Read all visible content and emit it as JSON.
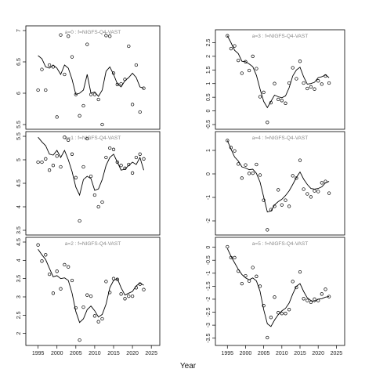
{
  "figure": {
    "xlabel": "Year"
  },
  "chart_data": [
    {
      "type": "line",
      "panel_label": "a=0  :  f=NIGFS-Q4-VAST",
      "xlim": [
        1993,
        2026
      ],
      "ylim": [
        5.5,
        7.0
      ],
      "yticks": [
        5.5,
        6.0,
        6.5,
        7.0
      ],
      "xticks": [
        1995,
        2000,
        2005,
        2010,
        2015,
        2020,
        2025
      ],
      "points": {
        "x": [
          1995,
          1996,
          1997,
          1998,
          1999,
          2000,
          2001,
          2002,
          2003,
          2004,
          2005,
          2006,
          2007,
          2008,
          2009,
          2010,
          2011,
          2012,
          2013,
          2014,
          2015,
          2016,
          2017,
          2018,
          2019,
          2020,
          2021,
          2022,
          2023
        ],
        "y": [
          6.05,
          6.38,
          6.05,
          6.45,
          6.42,
          5.62,
          6.93,
          6.3,
          6.91,
          6.58,
          5.98,
          5.64,
          5.8,
          6.78,
          5.98,
          5.98,
          5.9,
          5.5,
          6.92,
          6.91,
          6.32,
          6.14,
          6.15,
          6.22,
          6.75,
          5.82,
          6.45,
          5.7,
          6.08
        ]
      },
      "fit": {
        "x": [
          1995,
          1996,
          1997,
          1998,
          1999,
          2000,
          2001,
          2002,
          2003,
          2004,
          2005,
          2006,
          2007,
          2008,
          2009,
          2010,
          2011,
          2012,
          2013,
          2014,
          2015,
          2016,
          2017,
          2018,
          2019,
          2020,
          2021,
          2022,
          2023
        ],
        "y": [
          6.6,
          6.55,
          6.42,
          6.4,
          6.45,
          6.4,
          6.3,
          6.45,
          6.4,
          6.22,
          5.98,
          6.0,
          6.05,
          6.3,
          6.0,
          6.02,
          5.95,
          6.05,
          6.35,
          6.42,
          6.3,
          6.15,
          6.1,
          6.2,
          6.25,
          6.32,
          6.25,
          6.1,
          6.08
        ]
      }
    },
    {
      "type": "line",
      "panel_label": "a=1  :  f=NIGFS-Q4-VAST",
      "xlim": [
        1993,
        2026
      ],
      "ylim": [
        3.5,
        5.5
      ],
      "yticks": [
        3.5,
        4.0,
        4.5,
        5.0,
        5.5
      ],
      "xticks": [
        1995,
        2000,
        2005,
        2010,
        2015,
        2020,
        2025
      ],
      "points": {
        "x": [
          1995,
          1996,
          1997,
          1998,
          1999,
          2000,
          2001,
          2002,
          2003,
          2004,
          2005,
          2006,
          2007,
          2008,
          2009,
          2010,
          2011,
          2012,
          2013,
          2014,
          2015,
          2016,
          2017,
          2018,
          2019,
          2020,
          2021,
          2022,
          2023
        ],
        "y": [
          4.95,
          4.95,
          5.02,
          4.78,
          4.88,
          5.08,
          4.85,
          5.48,
          5.42,
          5.12,
          4.62,
          3.7,
          4.85,
          5.45,
          4.65,
          4.25,
          4.0,
          4.1,
          5.05,
          5.25,
          5.22,
          4.95,
          4.88,
          4.82,
          4.9,
          4.72,
          5.05,
          5.12,
          5.02
        ]
      },
      "fit": {
        "x": [
          1995,
          1996,
          1997,
          1998,
          1999,
          2000,
          2001,
          2002,
          2003,
          2004,
          2005,
          2006,
          2007,
          2008,
          2009,
          2010,
          2011,
          2012,
          2013,
          2014,
          2015,
          2016,
          2017,
          2018,
          2019,
          2020,
          2021,
          2022,
          2023
        ],
        "y": [
          5.48,
          5.38,
          5.3,
          5.12,
          5.1,
          5.2,
          5.05,
          5.2,
          5.0,
          4.75,
          4.42,
          4.25,
          4.58,
          4.65,
          4.6,
          4.35,
          4.38,
          4.58,
          4.88,
          5.05,
          5.12,
          4.95,
          4.78,
          4.8,
          4.88,
          4.95,
          4.9,
          5.05,
          4.78
        ]
      }
    },
    {
      "type": "line",
      "panel_label": "a=2  :  f=NIGFS-Q4-VAST",
      "xlim": [
        1993,
        2026
      ],
      "ylim": [
        1.8,
        4.5
      ],
      "yticks": [
        2.0,
        2.5,
        3.0,
        3.5,
        4.0,
        4.5
      ],
      "xticks": [
        1995,
        2000,
        2005,
        2010,
        2015,
        2020,
        2025
      ],
      "points": {
        "x": [
          1995,
          1996,
          1997,
          1998,
          1999,
          2000,
          2001,
          2002,
          2003,
          2004,
          2005,
          2006,
          2007,
          2008,
          2009,
          2010,
          2011,
          2012,
          2013,
          2014,
          2015,
          2016,
          2017,
          2018,
          2019,
          2020,
          2021,
          2022,
          2023
        ],
        "y": [
          4.42,
          3.98,
          4.15,
          3.62,
          3.1,
          3.7,
          3.22,
          3.88,
          3.82,
          3.45,
          2.7,
          1.82,
          2.72,
          3.05,
          3.02,
          2.48,
          2.32,
          2.4,
          3.42,
          3.12,
          3.5,
          3.48,
          3.08,
          2.95,
          3.02,
          3.02,
          3.25,
          3.35,
          3.2
        ]
      },
      "fit": {
        "x": [
          1995,
          1996,
          1997,
          1998,
          1999,
          2000,
          2001,
          2002,
          2003,
          2004,
          2005,
          2006,
          2007,
          2008,
          2009,
          2010,
          2011,
          2012,
          2013,
          2014,
          2015,
          2016,
          2017,
          2018,
          2019,
          2020,
          2021,
          2022,
          2023
        ],
        "y": [
          4.3,
          4.15,
          4.02,
          3.78,
          3.55,
          3.58,
          3.5,
          3.52,
          3.45,
          3.1,
          2.6,
          2.3,
          2.4,
          2.65,
          2.75,
          2.62,
          2.45,
          2.52,
          2.8,
          3.25,
          3.45,
          3.5,
          3.25,
          3.05,
          3.1,
          3.15,
          3.3,
          3.38,
          3.32
        ]
      }
    },
    {
      "type": "line",
      "panel_label": "a=3  :  f=NIGFS-Q4-VAST",
      "xlim": [
        1993,
        2026
      ],
      "ylim": [
        -0.5,
        2.8
      ],
      "yticks": [
        -0.5,
        0.0,
        0.5,
        1.0,
        1.5,
        2.0,
        2.5
      ],
      "xticks": [
        1995,
        2000,
        2005,
        2010,
        2015,
        2020,
        2025
      ],
      "points": {
        "x": [
          1995,
          1996,
          1997,
          1998,
          1999,
          2000,
          2001,
          2002,
          2003,
          2004,
          2005,
          2006,
          2007,
          2008,
          2009,
          2010,
          2011,
          2012,
          2013,
          2014,
          2015,
          2016,
          2017,
          2018,
          2019,
          2020,
          2021,
          2022,
          2023
        ],
        "y": [
          2.75,
          2.28,
          2.38,
          1.85,
          1.38,
          1.8,
          1.48,
          2.0,
          1.55,
          0.52,
          0.68,
          -0.42,
          0.3,
          1.0,
          0.42,
          0.38,
          0.28,
          1.02,
          1.58,
          1.18,
          1.82,
          1.02,
          0.82,
          0.88,
          0.8,
          1.1,
          0.98,
          1.28,
          1.02
        ]
      },
      "fit": {
        "x": [
          1995,
          1996,
          1997,
          1998,
          1999,
          2000,
          2001,
          2002,
          2003,
          2004,
          2005,
          2006,
          2007,
          2008,
          2009,
          2010,
          2011,
          2012,
          2013,
          2014,
          2015,
          2016,
          2017,
          2018,
          2019,
          2020,
          2021,
          2022,
          2023
        ],
        "y": [
          2.75,
          2.5,
          2.22,
          2.1,
          1.82,
          1.8,
          1.72,
          1.62,
          1.3,
          0.8,
          0.35,
          0.12,
          0.35,
          0.58,
          0.52,
          0.48,
          0.55,
          0.85,
          1.28,
          1.5,
          1.6,
          1.25,
          0.98,
          1.0,
          1.05,
          1.22,
          1.25,
          1.32,
          1.22
        ]
      }
    },
    {
      "type": "line",
      "panel_label": "a=4  :  f=NIGFS-Q4-VAST",
      "xlim": [
        1993,
        2026
      ],
      "ylim": [
        -2.4,
        1.6
      ],
      "yticks": [
        -2,
        -1,
        0,
        1
      ],
      "xticks": [
        1995,
        2000,
        2005,
        2010,
        2015,
        2020,
        2025
      ],
      "points": {
        "x": [
          1995,
          1996,
          1997,
          1998,
          1999,
          2000,
          2001,
          2002,
          2003,
          2004,
          2005,
          2006,
          2007,
          2008,
          2009,
          2010,
          2011,
          2012,
          2013,
          2014,
          2015,
          2016,
          2017,
          2018,
          2019,
          2020,
          2021,
          2022,
          2023
        ],
        "y": [
          1.42,
          1.12,
          0.98,
          0.42,
          -0.18,
          0.38,
          0.02,
          0.03,
          0.4,
          -0.05,
          -1.12,
          -2.38,
          -1.52,
          -1.38,
          -0.68,
          -1.32,
          -1.12,
          -1.38,
          -0.08,
          -0.18,
          0.58,
          -0.65,
          -0.85,
          -0.98,
          -0.72,
          -0.75,
          -0.38,
          -0.32,
          -0.82
        ]
      },
      "fit": {
        "x": [
          1995,
          1996,
          1997,
          1998,
          1999,
          2000,
          2001,
          2002,
          2003,
          2004,
          2005,
          2006,
          2007,
          2008,
          2009,
          2010,
          2011,
          2012,
          2013,
          2014,
          2015,
          2016,
          2017,
          2018,
          2019,
          2020,
          2021,
          2022,
          2023
        ],
        "y": [
          1.42,
          1.05,
          0.72,
          0.55,
          0.3,
          0.25,
          0.18,
          0.2,
          0.02,
          -0.35,
          -0.98,
          -1.62,
          -1.58,
          -1.32,
          -1.18,
          -1.08,
          -0.92,
          -0.72,
          -0.45,
          -0.15,
          0.08,
          -0.22,
          -0.45,
          -0.62,
          -0.65,
          -0.62,
          -0.55,
          -0.38,
          -0.32
        ]
      }
    },
    {
      "type": "line",
      "panel_label": "a=5  :  f=NIGFS-Q4-VAST",
      "xlim": [
        1993,
        2026
      ],
      "ylim": [
        -3.6,
        0.2
      ],
      "yticks": [
        -3.5,
        -3.0,
        -2.5,
        -2.0,
        -1.5,
        -1.0,
        -0.5,
        0.0
      ],
      "xticks": [
        1995,
        2000,
        2005,
        2010,
        2015,
        2020,
        2025
      ],
      "points": {
        "x": [
          1995,
          1996,
          1997,
          1998,
          1999,
          2000,
          2001,
          2002,
          2003,
          2004,
          2005,
          2006,
          2007,
          2008,
          2009,
          2010,
          2011,
          2012,
          2013,
          2014,
          2015,
          2016,
          2017,
          2018,
          2019,
          2020,
          2021,
          2022,
          2023
        ],
        "y": [
          0.02,
          -0.4,
          -0.4,
          -0.92,
          -1.4,
          -1.1,
          -1.3,
          -0.78,
          -1.12,
          -1.5,
          -2.25,
          -3.48,
          -2.7,
          -1.92,
          -2.52,
          -2.55,
          -2.55,
          -2.4,
          -1.32,
          -1.55,
          -0.95,
          -1.98,
          -2.05,
          -2.12,
          -2.0,
          -2.05,
          -1.8,
          -1.62,
          -1.9
        ]
      },
      "fit": {
        "x": [
          1995,
          1996,
          1997,
          1998,
          1999,
          2000,
          2001,
          2002,
          2003,
          2004,
          2005,
          2006,
          2007,
          2008,
          2009,
          2010,
          2011,
          2012,
          2013,
          2014,
          2015,
          2016,
          2017,
          2018,
          2019,
          2020,
          2021,
          2022,
          2023
        ],
        "y": [
          -0.05,
          -0.35,
          -0.6,
          -0.85,
          -1.05,
          -1.18,
          -1.25,
          -1.18,
          -1.3,
          -1.7,
          -2.4,
          -2.95,
          -3.05,
          -2.8,
          -2.6,
          -2.45,
          -2.35,
          -2.15,
          -1.8,
          -1.5,
          -1.4,
          -1.7,
          -1.95,
          -2.05,
          -2.1,
          -2.0,
          -1.98,
          -1.92,
          -1.9
        ]
      }
    }
  ]
}
